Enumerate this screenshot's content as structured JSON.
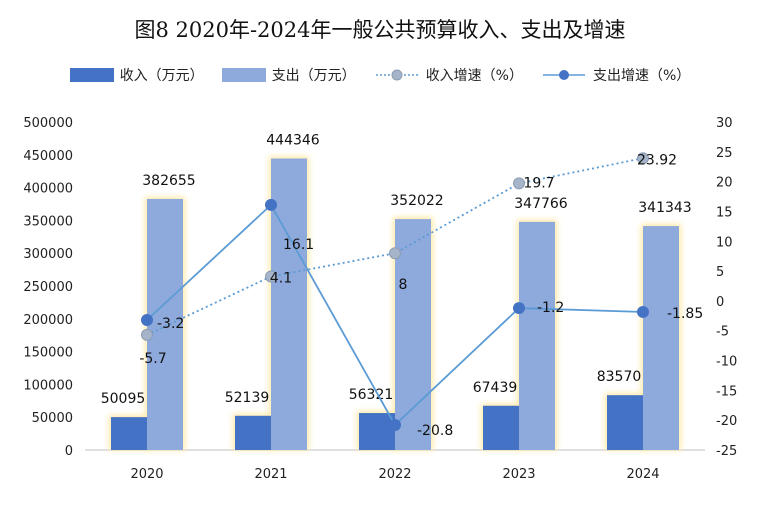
{
  "title": "图8  2020年-2024年一般公共预算收入、支出及增速",
  "legend": {
    "income": "收入（万元）",
    "expense": "支出（万元）",
    "income_growth": "收入增速（%）",
    "expense_growth": "支出增速（%）"
  },
  "colors": {
    "income_bar": "#4472C4",
    "expense_bar": "#8EA9DB",
    "income_line": "#5B9BD5",
    "income_marker": "#A5B4C8",
    "expense_line": "#5B9BD5",
    "expense_marker": "#4472C4",
    "glow": "#FFE9A8"
  },
  "chart_data": {
    "type": "bar",
    "categories": [
      "2020",
      "2021",
      "2022",
      "2023",
      "2024"
    ],
    "series": [
      {
        "name": "收入（万元）",
        "type": "bar",
        "axis": "left",
        "values": [
          50095,
          52139,
          56321,
          67439,
          83570
        ]
      },
      {
        "name": "支出（万元）",
        "type": "bar",
        "axis": "left",
        "values": [
          382655,
          444346,
          352022,
          347766,
          341343
        ]
      },
      {
        "name": "收入增速（%）",
        "type": "line",
        "style": "dotted",
        "axis": "right",
        "values": [
          -5.7,
          4.1,
          8,
          19.7,
          23.92
        ]
      },
      {
        "name": "支出增速（%）",
        "type": "line",
        "style": "solid",
        "axis": "right",
        "values": [
          -3.2,
          16.1,
          -20.8,
          -1.2,
          -1.85
        ]
      }
    ],
    "y_left": {
      "min": 0,
      "max": 500000,
      "ticks": [
        0,
        50000,
        100000,
        150000,
        200000,
        250000,
        300000,
        350000,
        400000,
        450000,
        500000
      ]
    },
    "y_right": {
      "min": -25,
      "max": 30,
      "ticks": [
        -25,
        -20,
        -15,
        -10,
        -5,
        0,
        5,
        10,
        15,
        20,
        25,
        30
      ]
    },
    "grid": false,
    "legend_position": "top"
  }
}
